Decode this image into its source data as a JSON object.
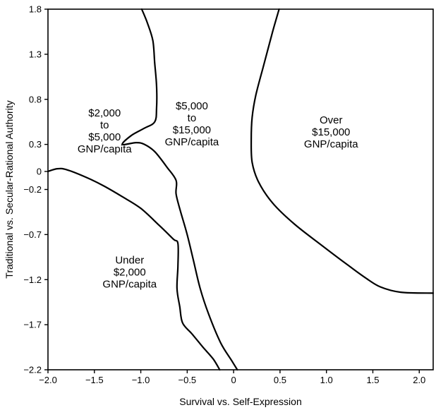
{
  "chart_data": {
    "type": "line",
    "title": "",
    "xlabel": "Survival vs. Self-Expression",
    "ylabel": "Traditional vs. Secular-Rational Authority",
    "xlim": [
      -2.0,
      2.15
    ],
    "ylim": [
      -2.2,
      1.8
    ],
    "x_ticks": [
      "−2.0",
      "−1.5",
      "−1.0",
      "−0.5",
      "0",
      "0.5",
      "1.0",
      "1.5",
      "2.0"
    ],
    "x_tick_values": [
      -2.0,
      -1.5,
      -1.0,
      -0.5,
      0,
      0.5,
      1.0,
      1.5,
      2.0
    ],
    "y_ticks": [
      "1.8",
      "1.3",
      "0.8",
      "0.3",
      "0",
      "−0.2",
      "−0.7",
      "−1.2",
      "−1.7",
      "−2.2"
    ],
    "y_tick_values": [
      1.8,
      1.3,
      0.8,
      0.3,
      0,
      -0.2,
      -0.7,
      -1.2,
      -1.7,
      -2.2
    ],
    "grid": false,
    "legend": "none",
    "region_labels": [
      {
        "name": "under-2000",
        "lines": [
          "Under",
          "$2,000",
          "GNP/capita"
        ],
        "x": -1.12,
        "y": -1.02
      },
      {
        "name": "2000-5000",
        "lines": [
          "$2,000",
          "to",
          "$5,000",
          "GNP/capita"
        ],
        "x": -1.39,
        "y": 0.61
      },
      {
        "name": "5000-15000",
        "lines": [
          "$5,000",
          "to",
          "$15,000",
          "GNP/capita"
        ],
        "x": -0.45,
        "y": 0.69
      },
      {
        "name": "over-15000",
        "lines": [
          "Over",
          "$15,000",
          "GNP/capita"
        ],
        "x": 1.05,
        "y": 0.53
      }
    ],
    "series": [
      {
        "points": [
          [
            -2.0,
            0.0
          ],
          [
            -1.9,
            0.03
          ],
          [
            -1.8,
            0.02
          ],
          [
            -1.6,
            -0.06
          ],
          [
            -1.4,
            -0.16
          ],
          [
            -1.2,
            -0.28
          ],
          [
            -1.0,
            -0.41
          ],
          [
            -0.8,
            -0.6
          ],
          [
            -0.65,
            -0.75
          ],
          [
            -0.6,
            -0.8
          ],
          [
            -0.6,
            -1.05
          ],
          [
            -0.61,
            -1.3
          ],
          [
            -0.58,
            -1.5
          ],
          [
            -0.55,
            -1.68
          ],
          [
            -0.45,
            -1.8
          ],
          [
            -0.33,
            -1.95
          ],
          [
            -0.22,
            -2.08
          ],
          [
            -0.15,
            -2.2
          ]
        ]
      },
      {
        "points": [
          [
            -0.99,
            1.8
          ],
          [
            -0.93,
            1.65
          ],
          [
            -0.87,
            1.45
          ],
          [
            -0.85,
            1.2
          ],
          [
            -0.83,
            0.95
          ],
          [
            -0.83,
            0.7
          ],
          [
            -0.85,
            0.55
          ],
          [
            -0.96,
            0.48
          ],
          [
            -1.1,
            0.4
          ],
          [
            -1.2,
            0.3
          ],
          [
            -1.05,
            0.32
          ],
          [
            -0.96,
            0.3
          ],
          [
            -0.85,
            0.22
          ],
          [
            -0.72,
            0.05
          ],
          [
            -0.62,
            -0.1
          ],
          [
            -0.62,
            -0.25
          ],
          [
            -0.57,
            -0.45
          ],
          [
            -0.5,
            -0.7
          ],
          [
            -0.43,
            -1.0
          ],
          [
            -0.36,
            -1.3
          ],
          [
            -0.27,
            -1.58
          ],
          [
            -0.14,
            -1.9
          ],
          [
            -0.02,
            -2.1
          ],
          [
            0.04,
            -2.2
          ]
        ]
      },
      {
        "points": [
          [
            0.49,
            1.8
          ],
          [
            0.42,
            1.55
          ],
          [
            0.33,
            1.2
          ],
          [
            0.24,
            0.85
          ],
          [
            0.2,
            0.6
          ],
          [
            0.19,
            0.35
          ],
          [
            0.2,
            0.1
          ],
          [
            0.27,
            -0.12
          ],
          [
            0.42,
            -0.35
          ],
          [
            0.65,
            -0.58
          ],
          [
            0.95,
            -0.82
          ],
          [
            1.22,
            -1.03
          ],
          [
            1.42,
            -1.18
          ],
          [
            1.58,
            -1.28
          ],
          [
            1.8,
            -1.34
          ],
          [
            2.15,
            -1.35
          ]
        ]
      }
    ]
  }
}
